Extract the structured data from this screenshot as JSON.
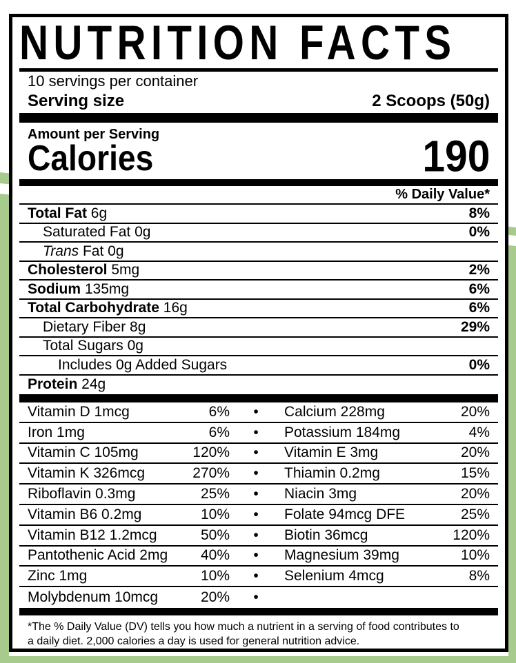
{
  "colors": {
    "accent_green": "#a6cb8c",
    "label_bg": "#ffffff",
    "ink": "#000000"
  },
  "header": {
    "title": "NUTRITION FACTS",
    "servings_per_container": "10 servings per container",
    "serving_size_label": "Serving size",
    "serving_size_value": "2 Scoops (50g)"
  },
  "calories": {
    "amount_per_serving_label": "Amount per Serving",
    "calories_label": "Calories",
    "calories_value": "190"
  },
  "daily_value_header": "% Daily Value*",
  "nutrients": [
    {
      "label": "Total Fat",
      "amount": "6g",
      "dv": "8%",
      "style": "bold",
      "indent": 0
    },
    {
      "label": "Saturated Fat",
      "amount": "0g",
      "dv": "0%",
      "style": "plain",
      "indent": 1
    },
    {
      "label": "Trans",
      "amount": "Fat 0g",
      "dv": "",
      "style": "italic",
      "indent": 1
    },
    {
      "label": "Cholesterol",
      "amount": "5mg",
      "dv": "2%",
      "style": "bold",
      "indent": 0
    },
    {
      "label": "Sodium",
      "amount": "135mg",
      "dv": "6%",
      "style": "bold",
      "indent": 0
    },
    {
      "label": "Total Carbohydrate",
      "amount": "16g",
      "dv": "6%",
      "style": "bold",
      "indent": 0
    },
    {
      "label": "Dietary Fiber",
      "amount": "8g",
      "dv": "29%",
      "style": "plain",
      "indent": 1
    },
    {
      "label": "Total Sugars",
      "amount": "0g",
      "dv": "",
      "style": "plain",
      "indent": 1
    },
    {
      "label": "Includes 0g Added Sugars",
      "amount": "",
      "dv": "0%",
      "style": "plain",
      "indent": 2
    },
    {
      "label": "Protein",
      "amount": "24g",
      "dv": "",
      "style": "bold",
      "indent": 0
    }
  ],
  "vitamin_bullet": "•",
  "vitamins": [
    {
      "left_name": "Vitamin D 1mcg",
      "left_dv": "6%",
      "right_name": "Calcium 228mg",
      "right_dv": "20%"
    },
    {
      "left_name": "Iron 1mg",
      "left_dv": "6%",
      "right_name": "Potassium 184mg",
      "right_dv": "4%"
    },
    {
      "left_name": "Vitamin C 105mg",
      "left_dv": "120%",
      "right_name": "Vitamin E 3mg",
      "right_dv": "20%"
    },
    {
      "left_name": "Vitamin K 326mcg",
      "left_dv": "270%",
      "right_name": "Thiamin 0.2mg",
      "right_dv": "15%"
    },
    {
      "left_name": "Riboflavin 0.3mg",
      "left_dv": "25%",
      "right_name": "Niacin 3mg",
      "right_dv": "20%"
    },
    {
      "left_name": "Vitamin B6 0.2mg",
      "left_dv": "10%",
      "right_name": "Folate 94mcg DFE",
      "right_dv": "25%"
    },
    {
      "left_name": "Vitamin B12 1.2mcg",
      "left_dv": "50%",
      "right_name": "Biotin 36mcg",
      "right_dv": "120%"
    },
    {
      "left_name": "Pantothenic Acid 2mg",
      "left_dv": "40%",
      "right_name": "Magnesium 39mg",
      "right_dv": "10%"
    },
    {
      "left_name": "Zinc 1mg",
      "left_dv": "10%",
      "right_name": "Selenium 4mcg",
      "right_dv": "8%"
    },
    {
      "left_name": "Molybdenum 10mcg",
      "left_dv": "20%",
      "right_name": "",
      "right_dv": ""
    }
  ],
  "footnote": {
    "line1": "*The % Daily Value (DV) tells you how much a nutrient in a serving of food contributes to",
    "line2": "a daily diet. 2,000 calories a day is used for general nutrition advice."
  }
}
